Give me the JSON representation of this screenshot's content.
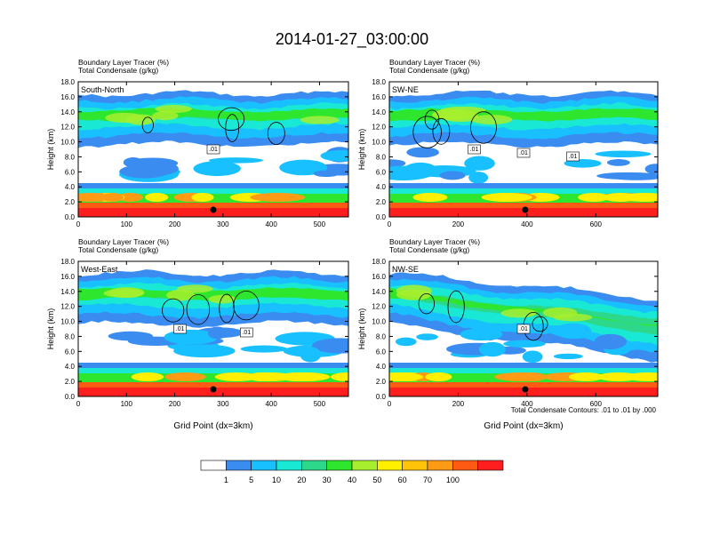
{
  "title": "2014-01-27_03:00:00",
  "chart_data": [
    {
      "type": "heatmap",
      "panel_label": "South-North",
      "left_title_1": "Boundary Layer Tracer   (%)",
      "left_title_2": "Total Condensate   (g/kg)",
      "ylabel": "Height (km)",
      "xlabel": "",
      "xlim": [
        0,
        560
      ],
      "ylim": [
        0,
        18
      ],
      "xticks": [
        "0",
        "100",
        "200",
        "300",
        "400",
        "500"
      ],
      "xtick_values": [
        0,
        100,
        200,
        300,
        400,
        500
      ],
      "yticks": [
        "0.0",
        "2.0",
        "4.0",
        "6.0",
        "8.0",
        "10.0",
        "12.0",
        "14.0",
        "16.0",
        "18.0"
      ],
      "marker_x": 280,
      "contour_labels": [
        ".01"
      ]
    },
    {
      "type": "heatmap",
      "panel_label": "SW-NE",
      "left_title_1": "Boundary Layer Tracer   (%)",
      "left_title_2": "Total Condensate   (g/kg)",
      "ylabel": "Height (km)",
      "xlabel": "",
      "xlim": [
        0,
        780
      ],
      "ylim": [
        0,
        18
      ],
      "xticks": [
        "0",
        "200",
        "400",
        "600"
      ],
      "xtick_values": [
        0,
        200,
        400,
        600
      ],
      "yticks": [
        "0.0",
        "2.0",
        "4.0",
        "6.0",
        "8.0",
        "10.0",
        "12.0",
        "14.0",
        "16.0",
        "18.0"
      ],
      "marker_x": 395,
      "contour_labels": [
        ".01",
        ".01",
        ".01"
      ]
    },
    {
      "type": "heatmap",
      "panel_label": "West-East",
      "left_title_1": "Boundary Layer Tracer   (%)",
      "left_title_2": "Total Condensate   (g/kg)",
      "ylabel": "Height (km)",
      "xlabel": "Grid Point (dx=3km)",
      "xlim": [
        0,
        560
      ],
      "ylim": [
        0,
        18
      ],
      "xticks": [
        "0",
        "100",
        "200",
        "300",
        "400",
        "500"
      ],
      "xtick_values": [
        0,
        100,
        200,
        300,
        400,
        500
      ],
      "yticks": [
        "0.0",
        "2.0",
        "4.0",
        "6.0",
        "8.0",
        "10.0",
        "12.0",
        "14.0",
        "16.0",
        "18.0"
      ],
      "marker_x": 280,
      "contour_labels": [
        ".01",
        ".01"
      ]
    },
    {
      "type": "heatmap",
      "panel_label": "NW-SE",
      "left_title_1": "Boundary Layer Tracer   (%)",
      "left_title_2": "Total Condensate   (g/kg)",
      "ylabel": "Height (km)",
      "xlabel": "Grid Point (dx=3km)",
      "xlim": [
        0,
        780
      ],
      "ylim": [
        0,
        18
      ],
      "xticks": [
        "0",
        "200",
        "400",
        "600"
      ],
      "xtick_values": [
        0,
        200,
        400,
        600
      ],
      "yticks": [
        "0.0",
        "2.0",
        "4.0",
        "6.0",
        "8.0",
        "10.0",
        "12.0",
        "14.0",
        "16.0",
        "18.0"
      ],
      "marker_x": 395,
      "contour_labels": [
        ".01"
      ]
    }
  ],
  "contour_note": "Total Condensate Contours: .01 to .01 by .000",
  "colorbar": {
    "colors": [
      "#ffffff",
      "#3a8cf0",
      "#19c0ff",
      "#18e8d4",
      "#2ed88a",
      "#2ee62e",
      "#a6ee2e",
      "#fff000",
      "#ffc40a",
      "#ff9a14",
      "#ff5a14",
      "#ff1e1e"
    ],
    "labels": [
      "1",
      "5",
      "10",
      "20",
      "30",
      "40",
      "50",
      "60",
      "70",
      "100"
    ]
  }
}
